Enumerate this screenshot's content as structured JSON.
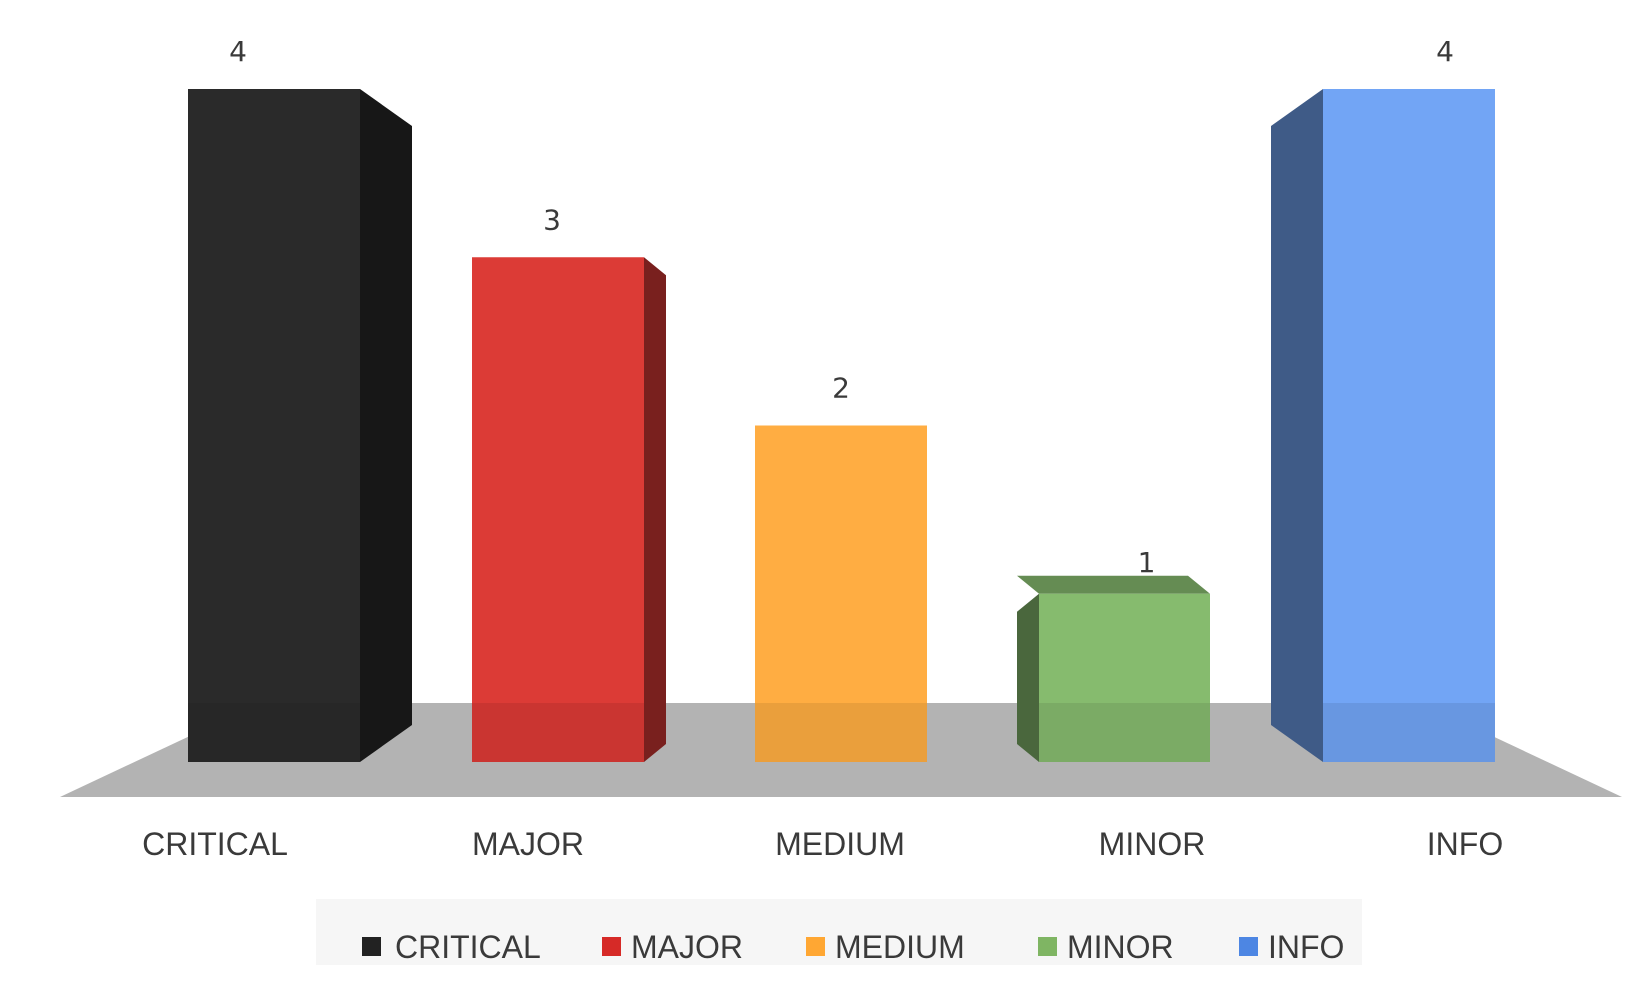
{
  "chart_data": {
    "type": "bar",
    "title": "",
    "xlabel": "",
    "ylabel": "",
    "categories": [
      "CRITICAL",
      "MAJOR",
      "MEDIUM",
      "MINOR",
      "INFO"
    ],
    "values": [
      4,
      3,
      2,
      1,
      4
    ],
    "value_labels": [
      "4",
      "3",
      "2",
      "1",
      "4"
    ],
    "colors": [
      "#2a2a2a",
      "#dc3b36",
      "#ffad42",
      "#86bb6e",
      "#72a5f5"
    ],
    "ylim": [
      0,
      4
    ],
    "grid": false,
    "style": "3d",
    "legend": {
      "position": "bottom",
      "entries": [
        "CRITICAL",
        "MAJOR",
        "MEDIUM",
        "MINOR",
        "INFO"
      ]
    }
  }
}
